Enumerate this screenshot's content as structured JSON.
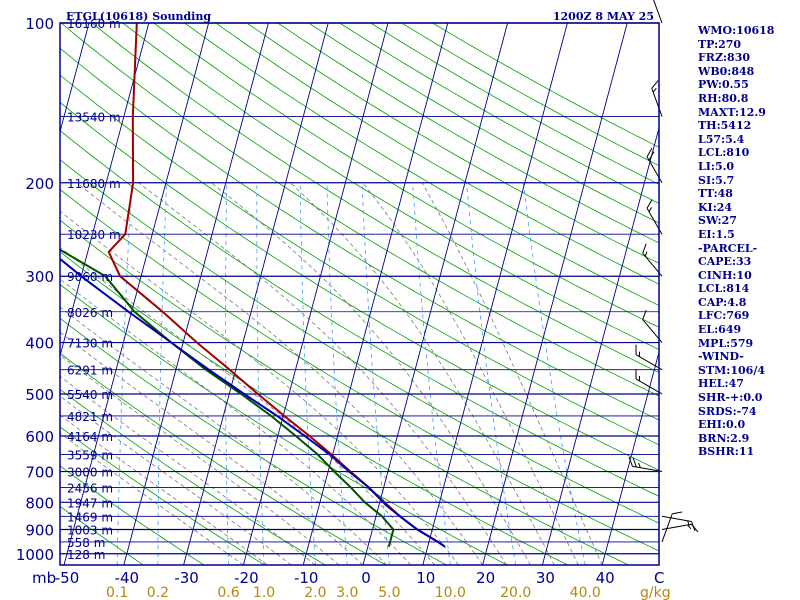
{
  "header": {
    "title": "ETGL(10618) Sounding",
    "time": "1200Z  8 MAY 25"
  },
  "units": {
    "pressure": "mb",
    "mixing_ratio": "g/kg",
    "temperature": "C"
  },
  "stats": [
    "WMO:10618",
    "TP:270",
    "FRZ:830",
    "WB0:848",
    "PW:0.55",
    "RH:80.8",
    "MAXT:12.9",
    "TH:5412",
    "L57:5.4",
    "LCL:810",
    "LI:5.0",
    "SI:5.7",
    "TT:48",
    "KI:24",
    "SW:27",
    "EI:1.5",
    "-PARCEL-",
    "CAPE:33",
    "CINH:10",
    "LCL:814",
    "CAP:4.8",
    "LFC:769",
    "EL:649",
    "MPL:579",
    "-WIND-",
    "STM:106/4",
    "HEL:47",
    "SHR-+:0.0",
    "SRDS:-74",
    "EHI:0.0",
    "BRN:2.9",
    "BSHR:11"
  ],
  "colors": {
    "frame": "#00008b",
    "isobar": "#00008b",
    "isotherm": "#00008b",
    "dry_adiabat": "#00a000",
    "moist_adiabat": "#7a7a7a",
    "mixing_ratio": "#40a0ff",
    "temperature": "#a00000",
    "dewpoint": "#005000",
    "parcel": "#0000b0",
    "wind": "#000000"
  },
  "chart_data": {
    "type": "line",
    "skew_t": true,
    "title": "ETGL(10618) Sounding",
    "y_axis": {
      "label": "mb",
      "scale": "log",
      "range": [
        1000,
        100
      ],
      "ticks": [
        100,
        200,
        300,
        400,
        500,
        600,
        700,
        800,
        900,
        1000
      ]
    },
    "x_axis": {
      "label": "C",
      "range": [
        -50,
        50
      ],
      "ticks": [
        -50,
        -40,
        -30,
        -20,
        -10,
        0,
        10,
        20,
        30,
        40
      ]
    },
    "mixing_ratio_labels": [
      "0.1",
      "0.2",
      "0.6",
      "1.0",
      "2.0",
      "3.0",
      "5.0",
      "10.0",
      "20.0",
      "40.0"
    ],
    "mixing_ratio_values": [
      0.1,
      0.2,
      0.6,
      1.0,
      2.0,
      3.0,
      5.0,
      10.0,
      20.0,
      40.0
    ],
    "height_labels": [
      {
        "p": 100,
        "label": "16160 m"
      },
      {
        "p": 150,
        "label": "13540 m"
      },
      {
        "p": 200,
        "label": "11680 m"
      },
      {
        "p": 250,
        "label": "10230 m"
      },
      {
        "p": 300,
        "label": "9060 m"
      },
      {
        "p": 350,
        "label": "8026 m"
      },
      {
        "p": 400,
        "label": "7130 m"
      },
      {
        "p": 450,
        "label": "6291 m"
      },
      {
        "p": 500,
        "label": "5540 m"
      },
      {
        "p": 550,
        "label": "4821 m"
      },
      {
        "p": 600,
        "label": "4164 m"
      },
      {
        "p": 650,
        "label": "3559 m"
      },
      {
        "p": 700,
        "label": "3000 m"
      },
      {
        "p": 750,
        "label": "2456 m"
      },
      {
        "p": 800,
        "label": "1947 m"
      },
      {
        "p": 850,
        "label": "1469 m"
      },
      {
        "p": 900,
        "label": "1003 m"
      },
      {
        "p": 950,
        "label": "558 m"
      },
      {
        "p": 1000,
        "label": "128 m"
      }
    ],
    "series": [
      {
        "key": "temperature",
        "values": [
          {
            "p": 970,
            "t": 12.9
          },
          {
            "p": 950,
            "t": 11.5
          },
          {
            "p": 900,
            "t": 7.5
          },
          {
            "p": 850,
            "t": 4.0
          },
          {
            "p": 800,
            "t": 0.8
          },
          {
            "p": 750,
            "t": -2.5
          },
          {
            "p": 700,
            "t": -6.3
          },
          {
            "p": 650,
            "t": -10.2
          },
          {
            "p": 600,
            "t": -14.7
          },
          {
            "p": 550,
            "t": -19.8
          },
          {
            "p": 500,
            "t": -25.2
          },
          {
            "p": 450,
            "t": -31.0
          },
          {
            "p": 400,
            "t": -37.7
          },
          {
            "p": 350,
            "t": -44.8
          },
          {
            "p": 300,
            "t": -53.5
          },
          {
            "p": 270,
            "t": -56.5
          },
          {
            "p": 250,
            "t": -54.5
          },
          {
            "p": 200,
            "t": -55.5
          },
          {
            "p": 150,
            "t": -58.5
          },
          {
            "p": 100,
            "t": -62.0
          }
        ]
      },
      {
        "key": "dewpoint",
        "values": [
          {
            "p": 970,
            "t": 3.5
          },
          {
            "p": 950,
            "t": 3.5
          },
          {
            "p": 900,
            "t": 3.5
          },
          {
            "p": 850,
            "t": 1.0
          },
          {
            "p": 800,
            "t": -2.5
          },
          {
            "p": 750,
            "t": -5.5
          },
          {
            "p": 700,
            "t": -9.0
          },
          {
            "p": 650,
            "t": -12.5
          },
          {
            "p": 600,
            "t": -17.0
          },
          {
            "p": 550,
            "t": -22.0
          },
          {
            "p": 500,
            "t": -28.0
          },
          {
            "p": 450,
            "t": -35.0
          },
          {
            "p": 400,
            "t": -42.0
          },
          {
            "p": 350,
            "t": -49.5
          },
          {
            "p": 300,
            "t": -56.0
          },
          {
            "p": 270,
            "t": -64.0
          },
          {
            "p": 250,
            "t": -70.0
          },
          {
            "p": 200,
            "t": -80.0
          },
          {
            "p": 150,
            "t": -82.0
          },
          {
            "p": 100,
            "t": -88.0
          }
        ]
      },
      {
        "key": "parcel",
        "values": [
          {
            "p": 970,
            "t": 12.9
          },
          {
            "p": 950,
            "t": 11.5
          },
          {
            "p": 900,
            "t": 7.5
          },
          {
            "p": 850,
            "t": 4.0
          },
          {
            "p": 810,
            "t": 1.2
          },
          {
            "p": 750,
            "t": -2.5
          },
          {
            "p": 700,
            "t": -6.5
          },
          {
            "p": 650,
            "t": -10.5
          },
          {
            "p": 600,
            "t": -15.5
          },
          {
            "p": 550,
            "t": -21.0
          },
          {
            "p": 500,
            "t": -27.5
          },
          {
            "p": 450,
            "t": -34.5
          },
          {
            "p": 400,
            "t": -42.0
          },
          {
            "p": 350,
            "t": -50.5
          },
          {
            "p": 300,
            "t": -60.0
          },
          {
            "p": 250,
            "t": -70.5
          },
          {
            "p": 200,
            "t": -82.0
          },
          {
            "p": 150,
            "t": -95.0
          },
          {
            "p": 120,
            "t": -103.0
          }
        ]
      }
    ],
    "wind_barbs": [
      {
        "p": 950,
        "dir": 20,
        "spd": 10
      },
      {
        "p": 900,
        "dir": 80,
        "spd": 15
      },
      {
        "p": 850,
        "dir": 100,
        "spd": 15
      },
      {
        "p": 700,
        "dir": 280,
        "spd": 25
      },
      {
        "p": 500,
        "dir": 300,
        "spd": 15
      },
      {
        "p": 450,
        "dir": 300,
        "spd": 15
      },
      {
        "p": 400,
        "dir": 320,
        "spd": 10
      },
      {
        "p": 300,
        "dir": 320,
        "spd": 15
      },
      {
        "p": 250,
        "dir": 330,
        "spd": 15
      },
      {
        "p": 200,
        "dir": 330,
        "spd": 20
      },
      {
        "p": 150,
        "dir": 340,
        "spd": 15
      },
      {
        "p": 100,
        "dir": 340,
        "spd": 10
      }
    ]
  }
}
